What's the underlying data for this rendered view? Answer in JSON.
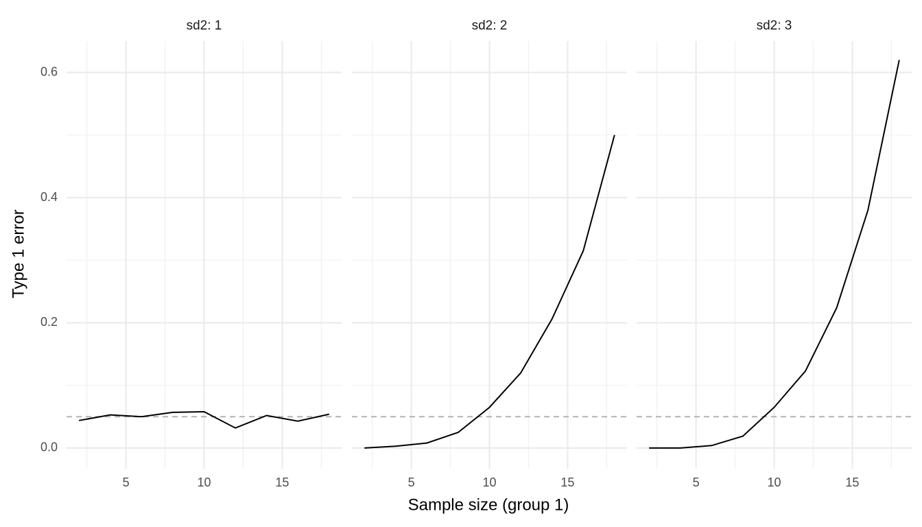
{
  "chart_data": {
    "type": "line",
    "x_label": "Sample size (group 1)",
    "y_label": "Type 1 error",
    "xlim": [
      1.2,
      18.8
    ],
    "ylim": [
      -0.033,
      0.65
    ],
    "xticks": [
      5,
      10,
      15
    ],
    "yticks": [
      {
        "value": 0,
        "label": "0.0"
      },
      0.2,
      0.4,
      0.6
    ],
    "grid": true,
    "minor_grid": true,
    "color": "#000000",
    "reference_line": {
      "value": 0.05,
      "color": "#b3b3b3",
      "dashed": true
    },
    "facets": [
      {
        "title": "sd2: 1",
        "x": [
          2,
          4,
          6,
          8,
          10,
          12,
          14,
          16,
          18
        ],
        "values": [
          0.044,
          0.053,
          0.05,
          0.057,
          0.058,
          0.032,
          0.052,
          0.043,
          0.054
        ]
      },
      {
        "title": "sd2: 2",
        "x": [
          2,
          4,
          6,
          8,
          10,
          12,
          14,
          16,
          18
        ],
        "values": [
          0,
          0.003,
          0.008,
          0.025,
          0.065,
          0.12,
          0.206,
          0.315,
          0.5
        ]
      },
      {
        "title": "sd2: 3",
        "x": [
          2,
          4,
          6,
          8,
          10,
          12,
          14,
          16,
          18
        ],
        "values": [
          0,
          0,
          0.004,
          0.019,
          0.065,
          0.123,
          0.224,
          0.38,
          0.62
        ]
      }
    ]
  }
}
